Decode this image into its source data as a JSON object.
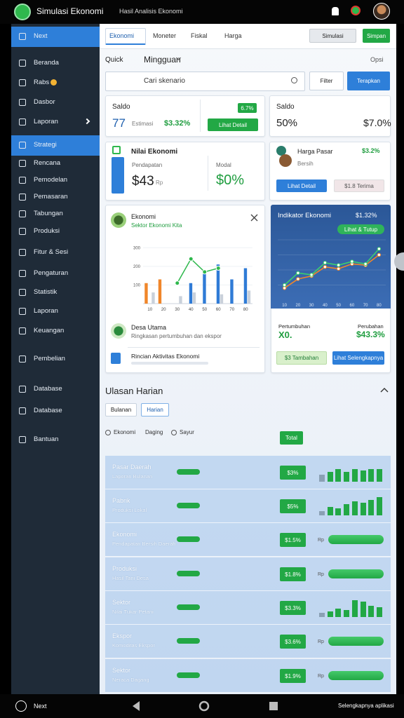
{
  "header": {
    "title": "Simulasi Ekonomi",
    "subtitle": "Hasil Analisis Ekonomi"
  },
  "sidebar": [
    "Next",
    "Beranda",
    "Rabs",
    "Dasbor",
    "Laporan",
    "Strategi",
    "Rencana",
    "Pemodelan",
    "Pemasaran",
    "Tabungan",
    "Produksi",
    "Fitur & Sesi",
    "Pengaturan",
    "Statistik",
    "Laporan",
    "Keuangan",
    "Pembelian",
    "Database",
    "Database",
    "Bantuan"
  ],
  "tabs": [
    "Ekonomi",
    "Moneter",
    "Fiskal",
    "Harga"
  ],
  "toolbar": {
    "simulate": "Simulasi",
    "save": "Simpan",
    "quick": "Quick",
    "period": "Mingguan",
    "options": "Opsi"
  },
  "search": {
    "placeholder": "Cari skenario",
    "filter": "Filter",
    "apply": "Terapkan"
  },
  "cards": [
    {
      "title": "Saldo",
      "value": "77",
      "caption": "Estimasi",
      "change": "$3.32%",
      "badge": "6.7%",
      "button": "Lihat Detail"
    },
    {
      "title": "Saldo",
      "value": "50%",
      "change": "$7.0%"
    },
    {
      "title": "Nilai Ekonomi",
      "label": "Pendapatan",
      "value": "$43",
      "unit": "Rp",
      "label2": "Modal",
      "value2": "$0%"
    },
    {
      "title": "Harga Pasar",
      "subtitle": "Bersih",
      "change": "$3.2%",
      "button": "Lihat Detail",
      "button2": "$1.8 Terima"
    }
  ],
  "panel": {
    "title": "Ekonomi",
    "subtitle": "Sektor Ekonomi Kita",
    "item1": "Desa Utama",
    "item1_sub": "Ringkasan pertumbuhan dan ekspor",
    "item2": "Rincian Aktivitas Ekonomi"
  },
  "summary": {
    "label": "Pertumbuhan",
    "value": "X0.",
    "label2": "Perubahan",
    "value2": "$43.3%",
    "button": "$3 Tambahan",
    "button2": "Lihat Selengkapnya"
  },
  "chart_data": [
    {
      "type": "bar",
      "categories": [
        "10",
        "20",
        "30",
        "40",
        "50",
        "60",
        "70",
        "80"
      ],
      "ylim": [
        0,
        350
      ],
      "yticks": [
        100,
        200,
        300
      ],
      "series": [
        {
          "type": "bar",
          "color": "#f0862a",
          "values": [
            110,
            130,
            null,
            null,
            null,
            null,
            null,
            null
          ]
        },
        {
          "type": "bar",
          "color": "#2f7bd6",
          "values": [
            null,
            null,
            null,
            110,
            160,
            210,
            130,
            190
          ]
        },
        {
          "type": "bar",
          "color": "#c9d1db",
          "values": [
            60,
            null,
            40,
            60,
            null,
            50,
            null,
            70
          ]
        },
        {
          "type": "line",
          "color": "#2fb84d",
          "values": [
            null,
            null,
            110,
            240,
            170,
            190,
            null,
            null
          ]
        }
      ]
    },
    {
      "type": "line",
      "title": "Indikator Ekonomi",
      "subtitle": "$1.32%",
      "button": "Lihat & Tutup",
      "categories": [
        "10",
        "20",
        "30",
        "40",
        "50",
        "60",
        "70",
        "80"
      ],
      "ylim": [
        0,
        100
      ],
      "series": [
        {
          "color": "#f0862a",
          "values": [
            20,
            35,
            40,
            55,
            52,
            60,
            58,
            75
          ]
        },
        {
          "color": "#3ccf6e",
          "values": [
            25,
            45,
            42,
            62,
            58,
            64,
            60,
            85
          ]
        }
      ]
    }
  ],
  "section": {
    "title": "Ulasan Harian",
    "tabs": [
      "Bulanan",
      "Harian"
    ],
    "filters": [
      "Ekonomi",
      "Daging",
      "Sayur"
    ],
    "total": "Total"
  },
  "rows": [
    {
      "title": "Pasar Daerah",
      "subtitle": "Laporan Bulanan",
      "value": "$3%",
      "bars": [
        5,
        7,
        9,
        7,
        9,
        8,
        9,
        9
      ]
    },
    {
      "title": "Pabrik",
      "subtitle": "Produksi Lokal",
      "value": "$5%",
      "bars": [
        3,
        6,
        5,
        8,
        10,
        9,
        11,
        13
      ]
    },
    {
      "title": "Ekonomi",
      "subtitle": "Pendapatan Bersih Daerah",
      "value": "$1.5%",
      "unit": "Rp",
      "progress": 100
    },
    {
      "title": "Produksi",
      "subtitle": "Hasil Tani Desa",
      "value": "$1.8%",
      "unit": "Rp",
      "progress": 100
    },
    {
      "title": "Sektor",
      "subtitle": "Nilai Tukar Petani",
      "value": "$3.3%",
      "bars": [
        3,
        4,
        6,
        5,
        12,
        11,
        8,
        7
      ]
    },
    {
      "title": "Ekspor",
      "subtitle": "Komoditas Ekspor",
      "value": "$3.6%",
      "unit": "Rp",
      "progress": 100
    },
    {
      "title": "Sektor",
      "subtitle": "Neraca Dagang",
      "value": "$1.9%",
      "unit": "Rp",
      "progress": 100
    }
  ],
  "nav": {
    "app": "Next",
    "status": "Selengkapnya aplikasi"
  }
}
